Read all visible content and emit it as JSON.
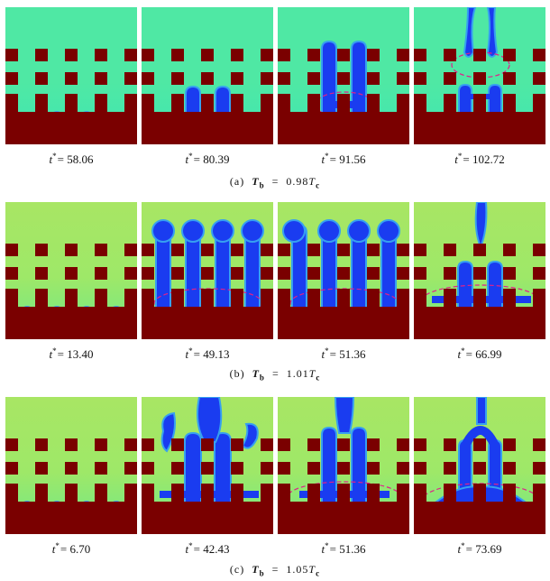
{
  "colors": {
    "wall": "#7a0000",
    "fluid_row_a": "#4fe8a4",
    "fluid_row_b": "#9ee868",
    "fluid_row_c": "#a8e664",
    "vapor": "#1a3cf0",
    "vapor_edge": "#36a0f0",
    "dashed_marker": "#e0208a"
  },
  "rows": [
    {
      "caption_prefix": "(a)",
      "var_symbol": "T",
      "var_subscript": "b",
      "equals": "=",
      "value": "0.98",
      "ref_symbol": "T",
      "ref_subscript": "c",
      "frames": [
        {
          "t_symbol": "t",
          "star": "*",
          "eq": "=",
          "value": "58.06"
        },
        {
          "t_symbol": "t",
          "star": "*",
          "eq": "=",
          "value": "80.39"
        },
        {
          "t_symbol": "t",
          "star": "*",
          "eq": "=",
          "value": "91.56"
        },
        {
          "t_symbol": "t",
          "star": "*",
          "eq": "=",
          "value": "102.72"
        }
      ]
    },
    {
      "caption_prefix": "(b)",
      "var_symbol": "T",
      "var_subscript": "b",
      "equals": "=",
      "value": "1.01",
      "ref_symbol": "T",
      "ref_subscript": "c",
      "frames": [
        {
          "t_symbol": "t",
          "star": "*",
          "eq": "=",
          "value": "13.40"
        },
        {
          "t_symbol": "t",
          "star": "*",
          "eq": "=",
          "value": "49.13"
        },
        {
          "t_symbol": "t",
          "star": "*",
          "eq": "=",
          "value": "51.36"
        },
        {
          "t_symbol": "t",
          "star": "*",
          "eq": "=",
          "value": "66.99"
        }
      ]
    },
    {
      "caption_prefix": "(c)",
      "var_symbol": "T",
      "var_subscript": "b",
      "equals": "=",
      "value": "1.05",
      "ref_symbol": "T",
      "ref_subscript": "c",
      "frames": [
        {
          "t_symbol": "t",
          "star": "*",
          "eq": "=",
          "value": "6.70"
        },
        {
          "t_symbol": "t",
          "star": "*",
          "eq": "=",
          "value": "42.43"
        },
        {
          "t_symbol": "t",
          "star": "*",
          "eq": "=",
          "value": "51.36"
        },
        {
          "t_symbol": "t",
          "star": "*",
          "eq": "=",
          "value": "73.69"
        }
      ]
    }
  ]
}
